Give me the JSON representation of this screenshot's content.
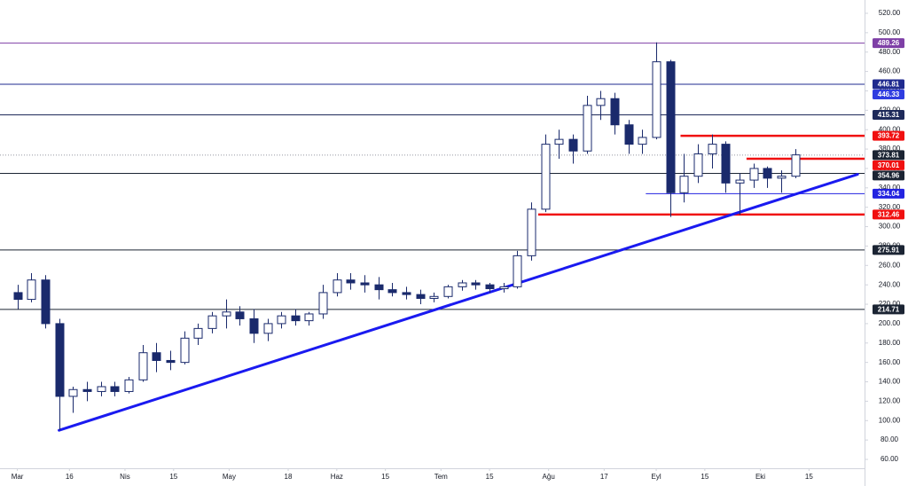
{
  "chart_data": {
    "type": "candlestick",
    "up_color": "#ffffff",
    "down_color": "#1a2a6c",
    "wick_color": "#1a2a6c",
    "x": [
      "03-01",
      "03-05",
      "03-09",
      "03-13",
      "03-17",
      "03-21",
      "03-25",
      "03-29",
      "04-02",
      "04-06",
      "04-10",
      "04-14",
      "04-18",
      "04-22",
      "04-26",
      "04-30",
      "05-04",
      "05-08",
      "05-12",
      "05-16",
      "05-20",
      "05-24",
      "05-28",
      "06-01",
      "06-05",
      "06-09",
      "06-13",
      "06-17",
      "06-21",
      "06-25",
      "06-29",
      "07-03",
      "07-07",
      "07-11",
      "07-15",
      "07-19",
      "07-23",
      "07-27",
      "07-31",
      "08-04",
      "08-08",
      "08-12",
      "08-16",
      "08-20",
      "08-24",
      "08-28",
      "09-01",
      "09-05",
      "09-09",
      "09-13",
      "09-17",
      "09-21",
      "09-25",
      "09-29",
      "10-03",
      "10-07",
      "10-11"
    ],
    "open": [
      232,
      225,
      245,
      200,
      125,
      132,
      130,
      135,
      130,
      142,
      170,
      162,
      160,
      185,
      195,
      208,
      212,
      205,
      190,
      200,
      208,
      203,
      210,
      232,
      245,
      242,
      240,
      235,
      232,
      230,
      226,
      228,
      238,
      242,
      240,
      236,
      238,
      270,
      318,
      385,
      390,
      378,
      425,
      432,
      405,
      385,
      392,
      470,
      335,
      352,
      375,
      385,
      345,
      348,
      360,
      350,
      352
    ],
    "high": [
      240,
      252,
      250,
      205,
      135,
      140,
      140,
      140,
      145,
      178,
      180,
      172,
      192,
      200,
      212,
      225,
      218,
      215,
      205,
      212,
      215,
      212,
      240,
      252,
      252,
      250,
      248,
      242,
      238,
      235,
      232,
      240,
      245,
      245,
      242,
      242,
      275,
      325,
      395,
      400,
      395,
      435,
      440,
      438,
      410,
      400,
      490,
      472,
      375,
      385,
      395,
      388,
      355,
      365,
      362,
      358,
      380
    ],
    "low": [
      215,
      222,
      195,
      90,
      108,
      120,
      125,
      125,
      128,
      140,
      150,
      152,
      158,
      178,
      190,
      195,
      198,
      180,
      182,
      195,
      198,
      198,
      205,
      228,
      235,
      232,
      225,
      228,
      225,
      220,
      222,
      226,
      234,
      235,
      232,
      232,
      236,
      265,
      315,
      370,
      365,
      375,
      410,
      395,
      375,
      375,
      390,
      310,
      325,
      345,
      360,
      335,
      312,
      340,
      340,
      335,
      350
    ],
    "close": [
      225,
      245,
      200,
      125,
      132,
      130,
      135,
      130,
      142,
      170,
      162,
      160,
      185,
      195,
      208,
      212,
      205,
      190,
      200,
      208,
      203,
      210,
      232,
      245,
      242,
      240,
      235,
      232,
      230,
      226,
      228,
      238,
      242,
      240,
      236,
      238,
      270,
      318,
      385,
      390,
      378,
      425,
      432,
      405,
      385,
      392,
      470,
      335,
      352,
      375,
      385,
      345,
      348,
      360,
      350,
      352,
      374
    ],
    "xlim": [
      "02-25",
      "10-31"
    ],
    "xticks": [
      {
        "value": "03-01",
        "label": "Mar"
      },
      {
        "value": "03-16",
        "label": "16"
      },
      {
        "value": "04-01",
        "label": "Nis"
      },
      {
        "value": "04-15",
        "label": "15"
      },
      {
        "value": "05-01",
        "label": "May"
      },
      {
        "value": "05-18",
        "label": "18"
      },
      {
        "value": "06-01",
        "label": "Haz"
      },
      {
        "value": "06-15",
        "label": "15"
      },
      {
        "value": "07-01",
        "label": "Tem"
      },
      {
        "value": "07-15",
        "label": "15"
      },
      {
        "value": "08-01",
        "label": "Ağu"
      },
      {
        "value": "08-17",
        "label": "17"
      },
      {
        "value": "09-01",
        "label": "Eyl"
      },
      {
        "value": "09-15",
        "label": "15"
      },
      {
        "value": "10-01",
        "label": "Eki"
      },
      {
        "value": "10-15",
        "label": "15"
      }
    ],
    "ylim": [
      50.85,
      533.71
    ],
    "yticks": [
      {
        "value": 60,
        "label": "60.00"
      },
      {
        "value": 80,
        "label": "80.00"
      },
      {
        "value": 100,
        "label": "100.00"
      },
      {
        "value": 120,
        "label": "120.00"
      },
      {
        "value": 140,
        "label": "140.00"
      },
      {
        "value": 160,
        "label": "160.00"
      },
      {
        "value": 180,
        "label": "180.00"
      },
      {
        "value": 200,
        "label": "200.00"
      },
      {
        "value": 220,
        "label": "220.00"
      },
      {
        "value": 240,
        "label": "240.00"
      },
      {
        "value": 260,
        "label": "260.00"
      },
      {
        "value": 280,
        "label": "280.00"
      },
      {
        "value": 300,
        "label": "300.00"
      },
      {
        "value": 320,
        "label": "320.00"
      },
      {
        "value": 340,
        "label": "340.00"
      },
      {
        "value": 360,
        "label": "360.00"
      },
      {
        "value": 380,
        "label": "380.00"
      },
      {
        "value": 400,
        "label": "400.00"
      },
      {
        "value": 420,
        "label": "420.00"
      },
      {
        "value": 440,
        "label": "440.00"
      },
      {
        "value": 460,
        "label": "460.00"
      },
      {
        "value": 480,
        "label": "480.00"
      },
      {
        "value": 500,
        "label": "500.00"
      },
      {
        "value": 520,
        "label": "520.00"
      }
    ],
    "levels": [
      {
        "value": 489.26,
        "color": "#7e3fa6",
        "style": "solid",
        "width": 1
      },
      {
        "value": 446.81,
        "color": "#1f2a8f",
        "style": "solid",
        "width": 1
      },
      {
        "value": 446.33,
        "color": "#2f3de0",
        "style": "none",
        "width": 1
      },
      {
        "value": 415.31,
        "color": "#1e2a5a",
        "style": "solid",
        "width": 1
      },
      {
        "value": 393.72,
        "color": "#f01010",
        "style": "solid",
        "width": 2.5,
        "start": "09-08"
      },
      {
        "value": 373.81,
        "color": "#1b2433",
        "style": "dotted",
        "width": 1
      },
      {
        "value": 370.01,
        "color": "#f01010",
        "style": "solid",
        "width": 2.5,
        "start": "09-27"
      },
      {
        "value": 354.96,
        "color": "#1b2433",
        "style": "solid",
        "width": 1
      },
      {
        "value": 334.04,
        "color": "#2323e0",
        "style": "solid",
        "width": 1,
        "start": "08-29"
      },
      {
        "value": 312.46,
        "color": "#f01010",
        "style": "solid",
        "width": 2.5,
        "start": "07-29"
      },
      {
        "value": 275.91,
        "color": "#1b2433",
        "style": "solid",
        "width": 1
      },
      {
        "value": 214.71,
        "color": "#1b2433",
        "style": "solid",
        "width": 1
      }
    ],
    "trendline": {
      "color": "#1a1af0",
      "width": 3,
      "points": [
        [
          "03-13",
          90
        ],
        [
          "10-29",
          354
        ]
      ]
    }
  }
}
